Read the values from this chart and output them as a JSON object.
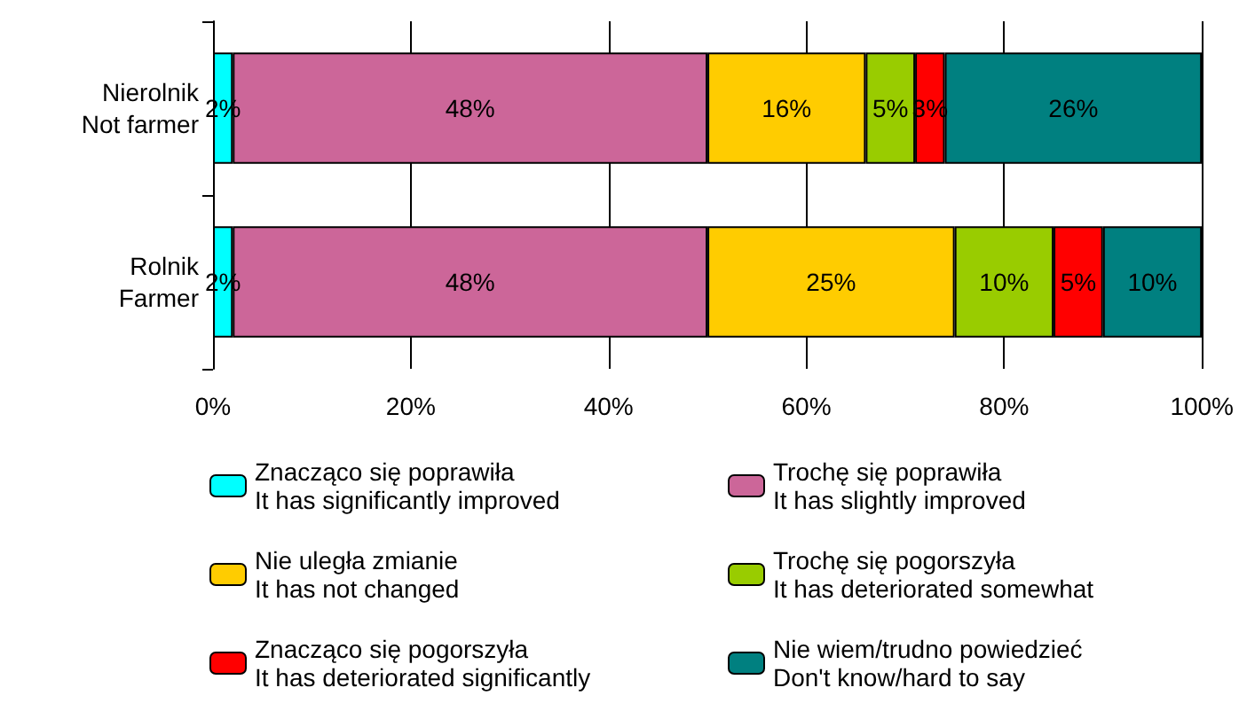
{
  "chart_data": {
    "type": "bar",
    "orientation": "horizontal",
    "stacked": true,
    "categories": [
      "Nierolnik\nNot farmer",
      "Rolnik\nFarmer"
    ],
    "series": [
      {
        "name": "Znacząco się poprawiła\nIt has significantly improved",
        "color": "#00ffff",
        "values": [
          2,
          2
        ],
        "value_labels": [
          "2%",
          "2%"
        ]
      },
      {
        "name": "Trochę się poprawiła\nIt has slightly improved",
        "color": "#cc6699",
        "values": [
          48,
          48
        ],
        "value_labels": [
          "48%",
          "48%"
        ]
      },
      {
        "name": "Nie uległa zmianie\nIt has not changed",
        "color": "#ffcc00",
        "values": [
          16,
          25
        ],
        "value_labels": [
          "16%",
          "25%"
        ]
      },
      {
        "name": "Trochę się pogorszyła\nIt has deteriorated somewhat",
        "color": "#99cc00",
        "values": [
          5,
          10
        ],
        "value_labels": [
          "5%",
          "10%"
        ]
      },
      {
        "name": "Znacząco się pogorszyła\nIt has deteriorated significantly",
        "color": "#ff0000",
        "values": [
          3,
          5
        ],
        "value_labels": [
          "3%",
          "5%"
        ]
      },
      {
        "name": "Nie wiem/trudno powiedzieć\nDon't know/hard to say",
        "color": "#008080",
        "values": [
          26,
          10
        ],
        "value_labels": [
          "26%",
          "10%"
        ]
      }
    ],
    "xlim": [
      0,
      100
    ],
    "xticks": [
      {
        "value": 0,
        "label": "0%"
      },
      {
        "value": 20,
        "label": "20%"
      },
      {
        "value": 40,
        "label": "40%"
      },
      {
        "value": 60,
        "label": "60%"
      },
      {
        "value": 80,
        "label": "80%"
      },
      {
        "value": 100,
        "label": "100%"
      }
    ],
    "grid": "x",
    "legend": "bottom"
  }
}
